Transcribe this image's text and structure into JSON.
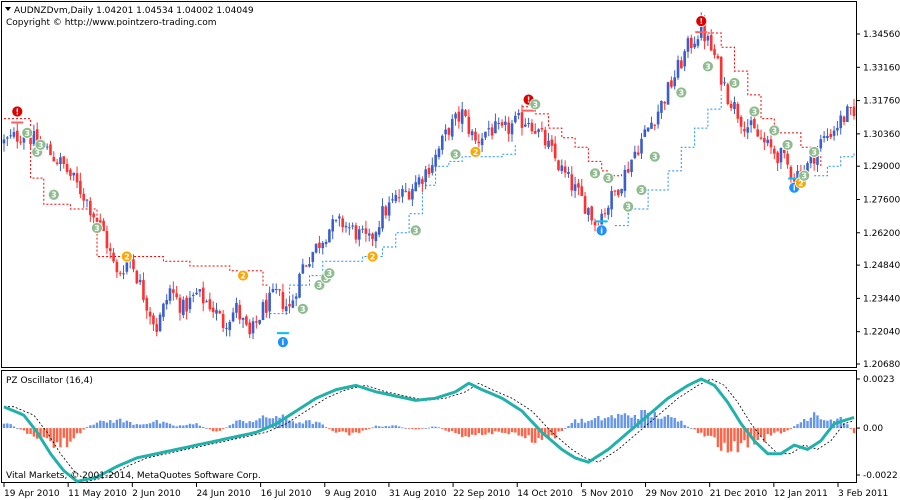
{
  "header": {
    "symbol_line": "AUDNZDvm,Daily  1.04201 1.04534 1.04002 1.04049",
    "copyright": "Copyright © http://www.pointzero-trading.com"
  },
  "oscillator": {
    "label": "PZ Oscillator (16,4)",
    "footer": "Vital Markets, © 2001-2014, MetaQuotes Software Corp."
  },
  "colors": {
    "bull": "#3a5fcd",
    "bear": "#ff3030",
    "stop_red": "#ff0000",
    "stop_blue": "#1e90ff",
    "teal": "#20b2aa",
    "green_badge": "#8fbc8f",
    "orange_badge": "#ffa500",
    "red_badge": "#e00000",
    "blue_badge": "#1e90ff",
    "hist_pos": "#6495ed",
    "hist_neg": "#ff6347"
  },
  "chart_data": [
    {
      "type": "candlestick",
      "title": "AUDNZDvm,Daily",
      "y_ticks": [
        "1.34560",
        "1.33160",
        "1.31760",
        "1.30360",
        "1.29000",
        "1.27600",
        "1.26200",
        "1.24840",
        "1.23440",
        "1.22040",
        "1.20680"
      ],
      "ylim": [
        1.2068,
        1.3572
      ],
      "x_ticks": [
        "19 Apr 2010",
        "11 May 2010",
        "2 Jun 2010",
        "24 Jun 2010",
        "16 Jul 2010",
        "9 Aug 2010",
        "31 Aug 2010",
        "22 Sep 2010",
        "14 Oct 2010",
        "5 Nov 2010",
        "29 Nov 2010",
        "21 Dec 2010",
        "12 Jan 2011",
        "3 Feb 2011"
      ],
      "close_path": [
        [
          0,
          1.3
        ],
        [
          6,
          1.304
        ],
        [
          12,
          1.298
        ],
        [
          18,
          1.29
        ],
        [
          24,
          1.278
        ],
        [
          30,
          1.262
        ],
        [
          34,
          1.244
        ],
        [
          38,
          1.252
        ],
        [
          42,
          1.236
        ],
        [
          46,
          1.222
        ],
        [
          50,
          1.238
        ],
        [
          54,
          1.23
        ],
        [
          58,
          1.236
        ],
        [
          62,
          1.232
        ],
        [
          66,
          1.224
        ],
        [
          70,
          1.23
        ],
        [
          74,
          1.218
        ],
        [
          78,
          1.23
        ],
        [
          82,
          1.236
        ],
        [
          86,
          1.23
        ],
        [
          90,
          1.248
        ],
        [
          94,
          1.256
        ],
        [
          98,
          1.264
        ],
        [
          102,
          1.266
        ],
        [
          106,
          1.262
        ],
        [
          110,
          1.258
        ],
        [
          114,
          1.27
        ],
        [
          118,
          1.276
        ],
        [
          122,
          1.28
        ],
        [
          126,
          1.286
        ],
        [
          130,
          1.294
        ],
        [
          134,
          1.306
        ],
        [
          138,
          1.312
        ],
        [
          142,
          1.3
        ],
        [
          146,
          1.306
        ],
        [
          150,
          1.304
        ],
        [
          154,
          1.308
        ],
        [
          158,
          1.31
        ],
        [
          160,
          1.306
        ],
        [
          164,
          1.298
        ],
        [
          168,
          1.288
        ],
        [
          172,
          1.28
        ],
        [
          176,
          1.272
        ],
        [
          178,
          1.266
        ],
        [
          182,
          1.274
        ],
        [
          186,
          1.284
        ],
        [
          190,
          1.296
        ],
        [
          194,
          1.306
        ],
        [
          198,
          1.316
        ],
        [
          202,
          1.328
        ],
        [
          206,
          1.34
        ],
        [
          210,
          1.348
        ],
        [
          214,
          1.336
        ],
        [
          218,
          1.32
        ],
        [
          222,
          1.31
        ],
        [
          226,
          1.304
        ],
        [
          230,
          1.298
        ],
        [
          234,
          1.294
        ],
        [
          238,
          1.286
        ],
        [
          242,
          1.29
        ],
        [
          246,
          1.3
        ],
        [
          250,
          1.306
        ],
        [
          254,
          1.312
        ],
        [
          256,
          1.31
        ]
      ],
      "stop_segments": [
        {
          "color": "red",
          "points": [
            [
              0,
              1.31
            ],
            [
              8,
              1.285
            ],
            [
              12,
              1.274
            ],
            [
              20,
              1.272
            ],
            [
              28,
              1.252
            ],
            [
              38,
              1.252
            ],
            [
              48,
              1.25
            ],
            [
              56,
              1.248
            ],
            [
              68,
              1.246
            ],
            [
              76,
              1.246
            ],
            [
              78,
              1.24
            ],
            [
              80,
              1.24
            ]
          ]
        },
        {
          "color": "blue",
          "points": [
            [
              80,
              1.228
            ],
            [
              86,
              1.24
            ],
            [
              92,
              1.244
            ],
            [
              96,
              1.25
            ],
            [
              100,
              1.25
            ],
            [
              108,
              1.252
            ],
            [
              114,
              1.256
            ],
            [
              118,
              1.262
            ],
            [
              122,
              1.27
            ],
            [
              126,
              1.282
            ],
            [
              130,
              1.29
            ],
            [
              134,
              1.292
            ],
            [
              138,
              1.294
            ],
            [
              144,
              1.294
            ],
            [
              150,
              1.295
            ],
            [
              154,
              1.299
            ]
          ]
        },
        {
          "color": "red",
          "points": [
            [
              156,
              1.315
            ],
            [
              160,
              1.312
            ],
            [
              164,
              1.306
            ],
            [
              168,
              1.302
            ],
            [
              172,
              1.298
            ],
            [
              176,
              1.292
            ],
            [
              180,
              1.288
            ],
            [
              182,
              1.286
            ],
            [
              186,
              1.287
            ]
          ]
        },
        {
          "color": "blue",
          "points": [
            [
              184,
              1.265
            ],
            [
              188,
              1.272
            ],
            [
              194,
              1.28
            ],
            [
              200,
              1.288
            ],
            [
              204,
              1.298
            ],
            [
              208,
              1.306
            ],
            [
              212,
              1.314
            ],
            [
              216,
              1.32
            ]
          ]
        },
        {
          "color": "red",
          "points": [
            [
              212,
              1.346
            ],
            [
              216,
              1.34
            ],
            [
              220,
              1.33
            ],
            [
              224,
              1.32
            ],
            [
              228,
              1.31
            ],
            [
              232,
              1.304
            ],
            [
              236,
              1.304
            ],
            [
              240,
              1.298
            ],
            [
              244,
              1.294
            ],
            [
              246,
              1.29
            ]
          ]
        },
        {
          "color": "blue",
          "points": [
            [
              244,
              1.286
            ],
            [
              248,
              1.29
            ],
            [
              252,
              1.294
            ],
            [
              256,
              1.296
            ]
          ]
        }
      ],
      "badges": [
        {
          "i": 4,
          "v": 1.313,
          "label": "!",
          "kind": "red"
        },
        {
          "i": 7,
          "v": 1.304,
          "label": "3",
          "kind": "green"
        },
        {
          "i": 10,
          "v": 1.296,
          "label": "3",
          "kind": "green"
        },
        {
          "i": 11,
          "v": 1.299,
          "label": "3",
          "kind": "green"
        },
        {
          "i": 15,
          "v": 1.278,
          "label": "3",
          "kind": "green"
        },
        {
          "i": 28,
          "v": 1.264,
          "label": "3",
          "kind": "green"
        },
        {
          "i": 37,
          "v": 1.252,
          "label": "2",
          "kind": "orange"
        },
        {
          "i": 72,
          "v": 1.244,
          "label": "2",
          "kind": "orange"
        },
        {
          "i": 84,
          "v": 1.216,
          "label": "i",
          "kind": "blue"
        },
        {
          "i": 90,
          "v": 1.23,
          "label": "3",
          "kind": "green"
        },
        {
          "i": 95,
          "v": 1.24,
          "label": "3",
          "kind": "green"
        },
        {
          "i": 97,
          "v": 1.243,
          "label": "3",
          "kind": "green"
        },
        {
          "i": 98,
          "v": 1.245,
          "label": "3",
          "kind": "green"
        },
        {
          "i": 111,
          "v": 1.252,
          "label": "2",
          "kind": "orange"
        },
        {
          "i": 124,
          "v": 1.263,
          "label": "3",
          "kind": "green"
        },
        {
          "i": 136,
          "v": 1.295,
          "label": "3",
          "kind": "green"
        },
        {
          "i": 142,
          "v": 1.296,
          "label": "2",
          "kind": "orange"
        },
        {
          "i": 158,
          "v": 1.318,
          "label": "!",
          "kind": "red"
        },
        {
          "i": 160,
          "v": 1.316,
          "label": "3",
          "kind": "green"
        },
        {
          "i": 178,
          "v": 1.287,
          "label": "3",
          "kind": "green"
        },
        {
          "i": 180,
          "v": 1.263,
          "label": "i",
          "kind": "blue"
        },
        {
          "i": 182,
          "v": 1.285,
          "label": "3",
          "kind": "green"
        },
        {
          "i": 188,
          "v": 1.273,
          "label": "3",
          "kind": "green"
        },
        {
          "i": 192,
          "v": 1.28,
          "label": "3",
          "kind": "green"
        },
        {
          "i": 196,
          "v": 1.294,
          "label": "3",
          "kind": "green"
        },
        {
          "i": 204,
          "v": 1.321,
          "label": "3",
          "kind": "green"
        },
        {
          "i": 210,
          "v": 1.351,
          "label": "!",
          "kind": "red"
        },
        {
          "i": 212,
          "v": 1.332,
          "label": "3",
          "kind": "green"
        },
        {
          "i": 220,
          "v": 1.325,
          "label": "3",
          "kind": "green"
        },
        {
          "i": 226,
          "v": 1.313,
          "label": "3",
          "kind": "green"
        },
        {
          "i": 232,
          "v": 1.305,
          "label": "3",
          "kind": "green"
        },
        {
          "i": 236,
          "v": 1.299,
          "label": "3",
          "kind": "green"
        },
        {
          "i": 238,
          "v": 1.281,
          "label": "i",
          "kind": "blue"
        },
        {
          "i": 240,
          "v": 1.283,
          "label": "2",
          "kind": "orange"
        },
        {
          "i": 241,
          "v": 1.286,
          "label": "3",
          "kind": "green"
        },
        {
          "i": 244,
          "v": 1.296,
          "label": "3",
          "kind": "green"
        }
      ],
      "bars_count": 257
    },
    {
      "type": "oscillator",
      "title": "PZ Oscillator (16,4)",
      "y_ticks": [
        "0.0023",
        "0.00",
        "-0.0022"
      ],
      "ylim": [
        -0.0027,
        0.0023
      ],
      "line": [
        [
          0,
          0.001
        ],
        [
          6,
          0.0006
        ],
        [
          10,
          -0.0002
        ],
        [
          14,
          -0.0012
        ],
        [
          18,
          -0.002
        ],
        [
          22,
          -0.0025
        ],
        [
          28,
          -0.0023
        ],
        [
          34,
          -0.0018
        ],
        [
          40,
          -0.0014
        ],
        [
          46,
          -0.0012
        ],
        [
          52,
          -0.001
        ],
        [
          58,
          -0.0008
        ],
        [
          64,
          -0.0006
        ],
        [
          70,
          -0.0004
        ],
        [
          76,
          -0.0002
        ],
        [
          82,
          0.0002
        ],
        [
          88,
          0.0008
        ],
        [
          94,
          0.0014
        ],
        [
          100,
          0.0018
        ],
        [
          106,
          0.002
        ],
        [
          112,
          0.0017
        ],
        [
          118,
          0.0015
        ],
        [
          124,
          0.0013
        ],
        [
          130,
          0.0014
        ],
        [
          136,
          0.0017
        ],
        [
          140,
          0.0021
        ],
        [
          144,
          0.0018
        ],
        [
          150,
          0.0014
        ],
        [
          156,
          0.0008
        ],
        [
          162,
          -0.0002
        ],
        [
          168,
          -0.001
        ],
        [
          172,
          -0.0014
        ],
        [
          176,
          -0.0016
        ],
        [
          182,
          -0.001
        ],
        [
          188,
          -0.0002
        ],
        [
          194,
          0.0006
        ],
        [
          200,
          0.0014
        ],
        [
          206,
          0.002
        ],
        [
          210,
          0.0023
        ],
        [
          214,
          0.002
        ],
        [
          218,
          0.0012
        ],
        [
          222,
          0.0002
        ],
        [
          226,
          -0.0006
        ],
        [
          230,
          -0.0012
        ],
        [
          234,
          -0.0012
        ],
        [
          238,
          -0.0008
        ],
        [
          242,
          -0.001
        ],
        [
          246,
          -0.0006
        ],
        [
          250,
          0.0002
        ],
        [
          256,
          0.0005
        ]
      ],
      "hist_profile": [
        [
          0,
          0.0003
        ],
        [
          8,
          -0.0003
        ],
        [
          14,
          -0.0008
        ],
        [
          20,
          -0.0007
        ],
        [
          26,
          0.0002
        ],
        [
          30,
          0.0003
        ],
        [
          34,
          0.0004
        ],
        [
          40,
          0.0002
        ],
        [
          46,
          0.0003
        ],
        [
          52,
          0.0001
        ],
        [
          58,
          0.0002
        ],
        [
          64,
          -0.0002
        ],
        [
          70,
          0.0003
        ],
        [
          76,
          0.0004
        ],
        [
          82,
          0.0006
        ],
        [
          88,
          0.0003
        ],
        [
          94,
          0.0003
        ],
        [
          100,
          -0.0002
        ],
        [
          106,
          -0.0003
        ],
        [
          112,
          0.0001
        ],
        [
          118,
          0.0001
        ],
        [
          124,
          -0.0001
        ],
        [
          130,
          0.0001
        ],
        [
          136,
          -0.0003
        ],
        [
          142,
          -0.0004
        ],
        [
          148,
          -0.0002
        ],
        [
          154,
          -0.0003
        ],
        [
          160,
          -0.0006
        ],
        [
          166,
          -0.0004
        ],
        [
          172,
          0.0004
        ],
        [
          176,
          0.0003
        ],
        [
          180,
          0.0005
        ],
        [
          186,
          0.0006
        ],
        [
          192,
          0.0007
        ],
        [
          198,
          0.0006
        ],
        [
          204,
          0.0003
        ],
        [
          210,
          -0.0003
        ],
        [
          216,
          -0.0009
        ],
        [
          222,
          -0.001
        ],
        [
          228,
          -0.0006
        ],
        [
          232,
          -0.0003
        ],
        [
          236,
          -0.0001
        ],
        [
          240,
          0.0003
        ],
        [
          244,
          0.0008
        ],
        [
          248,
          0.0004
        ],
        [
          252,
          0.0005
        ],
        [
          256,
          -0.0002
        ]
      ]
    }
  ]
}
